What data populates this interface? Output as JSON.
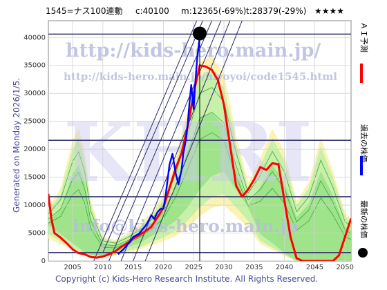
{
  "header": {
    "ticker": "1545=ナス100連動",
    "current": "c:40100",
    "min_stat": "m:12365(-69%)",
    "target_stat": "t:28379(-29%)",
    "rating": "★★★★"
  },
  "side_label": "Generated on Monday 2026/1/5.",
  "copyright": "Copyright (c) Kids-Hero Research Institute. All Rights Reserved.",
  "watermark": {
    "url1": "http://kids-hero.main.jp/",
    "url2": "http://kids-hero.main.jp/hiyoyoi/code1545.html",
    "big": "KHRI",
    "email": "info@kids-hero.main.jp"
  },
  "legend": [
    {
      "label": "ＡＩ予測",
      "color": "#ff0000"
    },
    {
      "label": "過去の株価",
      "color": "#0000ff"
    },
    {
      "label": "最新の株価",
      "color": "#000000"
    }
  ],
  "chart_data": {
    "type": "line",
    "xlim": [
      2001,
      2051
    ],
    "ylim": [
      0,
      43000
    ],
    "x_ticks": [
      2005,
      2010,
      2015,
      2020,
      2025,
      2030,
      2035,
      2040,
      2045,
      2050
    ],
    "y_ticks": [
      0,
      5000,
      10000,
      15000,
      20000,
      25000,
      30000,
      35000,
      40000
    ],
    "grid": true,
    "horizontal_levels": [
      1500,
      11500,
      21600,
      40600
    ],
    "latest_point": {
      "x": 2026.0,
      "y": 40100
    },
    "series": [
      {
        "name": "過去の株価",
        "color": "#0000ff",
        "x": [
          2012.5,
          2013,
          2013.5,
          2014,
          2014.5,
          2015,
          2015.5,
          2016,
          2016.5,
          2017,
          2017.5,
          2018,
          2018.5,
          2019,
          2019.5,
          2020,
          2020.3,
          2020.7,
          2021,
          2021.5,
          2022,
          2022.5,
          2023,
          2023.3,
          2023.7,
          2024,
          2024.3,
          2024.6,
          2025,
          2025.3,
          2025.6,
          2026
        ],
        "y": [
          1200,
          1700,
          2200,
          2900,
          3400,
          4300,
          4600,
          4900,
          5600,
          6200,
          7100,
          8200,
          7500,
          8700,
          9300,
          9400,
          11200,
          14600,
          17200,
          19200,
          15800,
          13700,
          16300,
          19300,
          21600,
          24300,
          28200,
          31500,
          27200,
          32500,
          36500,
          40100
        ]
      },
      {
        "name": "ＡＩ予測",
        "color": "#ff0000",
        "x": [
          2001,
          2001.5,
          2002,
          2003,
          2004,
          2005,
          2006,
          2007,
          2008,
          2009,
          2010,
          2011,
          2012,
          2013,
          2014,
          2015,
          2016,
          2017,
          2018,
          2019,
          2020,
          2021,
          2022,
          2023,
          2024,
          2025,
          2026,
          2027,
          2028,
          2029,
          2030,
          2031,
          2032,
          2033,
          2034,
          2035,
          2036,
          2037,
          2038,
          2039,
          2040,
          2041,
          2042,
          2043,
          2044,
          2045,
          2046,
          2047,
          2048,
          2049,
          2050,
          2051
        ],
        "y": [
          12000,
          7500,
          5000,
          4200,
          3200,
          2100,
          1400,
          1200,
          700,
          600,
          800,
          1200,
          1700,
          2500,
          3200,
          4000,
          4600,
          5300,
          6100,
          7800,
          9500,
          13000,
          16500,
          19300,
          24000,
          30000,
          35000,
          34800,
          34200,
          32400,
          28000,
          20800,
          13500,
          11500,
          12800,
          14600,
          16800,
          16300,
          17500,
          17300,
          10800,
          4300,
          500,
          0,
          0,
          0,
          0,
          0,
          0,
          1000,
          4300,
          7600
        ]
      }
    ]
  }
}
